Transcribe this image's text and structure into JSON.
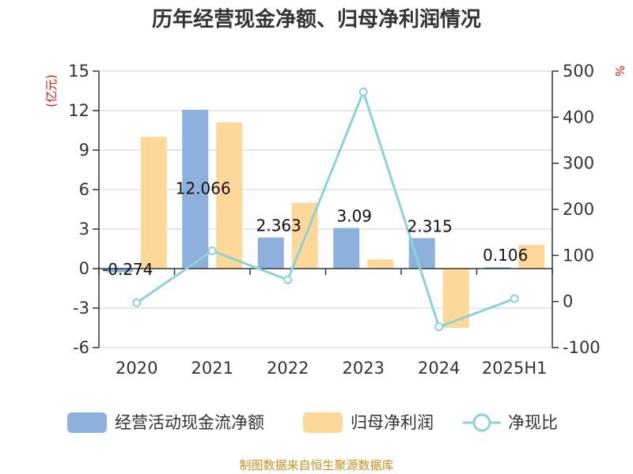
{
  "title": "历年经营现金净额、归母净利润情况",
  "source": "制图数据来自恒生聚源数据库",
  "chart_data": {
    "type": "bar",
    "title": "历年经营现金净额、归母净利润情况",
    "categories": [
      "2020",
      "2021",
      "2022",
      "2023",
      "2024",
      "2025H1"
    ],
    "left_axis": {
      "unit": "(亿元)",
      "ylim": [
        -6,
        15
      ],
      "ticks": [
        "-6",
        "-3",
        "0",
        "3",
        "6",
        "9",
        "12",
        "15"
      ]
    },
    "right_axis": {
      "unit": "%",
      "ylim": [
        -100,
        500
      ],
      "ticks": [
        "-100",
        "0",
        "100",
        "200",
        "300",
        "400",
        "500"
      ]
    },
    "series": [
      {
        "name": "经营活动现金流净额",
        "type": "bar",
        "axis": "left",
        "color": "#8eb0dc",
        "values": [
          -0.274,
          12.066,
          2.363,
          3.09,
          2.315,
          0.106
        ],
        "labels": [
          "-0.274",
          "12.066",
          "2.363",
          "3.09",
          "2.315",
          "0.106"
        ]
      },
      {
        "name": "归母净利润",
        "type": "bar",
        "axis": "left",
        "color": "#fdd898",
        "values": [
          10.0,
          11.1,
          5.0,
          0.7,
          -4.5,
          1.8
        ]
      },
      {
        "name": "净现比",
        "type": "line",
        "axis": "right",
        "color": "#8bd3d8",
        "values": [
          -3,
          110,
          47,
          455,
          -55,
          6
        ]
      }
    ],
    "grid": true,
    "legend_position": "bottom"
  }
}
